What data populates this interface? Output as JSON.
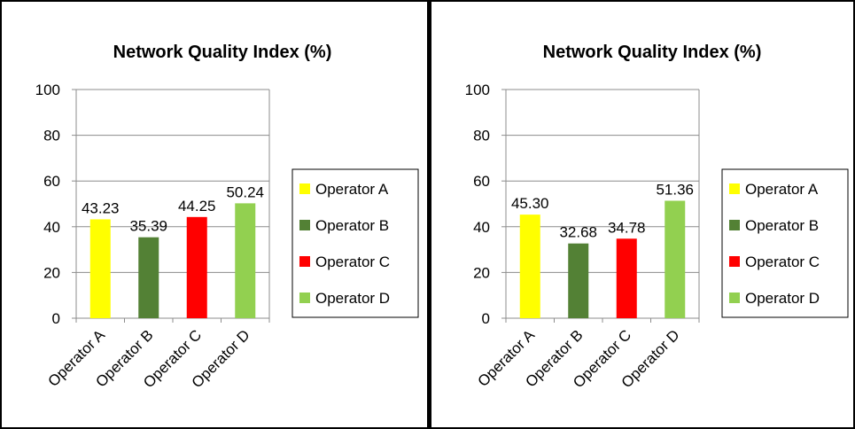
{
  "charts": [
    {
      "chart_data": {
        "type": "bar",
        "title": "Network Quality Index (%)",
        "categories": [
          "Operator A",
          "Operator B",
          "Operator C",
          "Operator D"
        ],
        "values": [
          43.23,
          35.39,
          44.25,
          50.24
        ],
        "labels": [
          "43.23",
          "35.39",
          "44.25",
          "50.24"
        ],
        "colors": [
          "#ffff00",
          "#538135",
          "#ff0000",
          "#92d050"
        ],
        "ylim": [
          0,
          100
        ],
        "yticks": [
          "0",
          "20",
          "40",
          "60",
          "80",
          "100"
        ],
        "grid": true,
        "legend": "right",
        "legend_entries": [
          "Operator A",
          "Operator B",
          "Operator C",
          "Operator D"
        ]
      }
    },
    {
      "chart_data": {
        "type": "bar",
        "title": "Network Quality Index (%)",
        "categories": [
          "Operator A",
          "Operator B",
          "Operator C",
          "Operator D"
        ],
        "values": [
          45.3,
          32.68,
          34.78,
          51.36
        ],
        "labels": [
          "45.30",
          "32.68",
          "34.78",
          "51.36"
        ],
        "colors": [
          "#ffff00",
          "#538135",
          "#ff0000",
          "#92d050"
        ],
        "ylim": [
          0,
          100
        ],
        "yticks": [
          "0",
          "20",
          "40",
          "60",
          "80",
          "100"
        ],
        "grid": true,
        "legend": "right",
        "legend_entries": [
          "Operator A",
          "Operator B",
          "Operator C",
          "Operator D"
        ]
      }
    }
  ]
}
